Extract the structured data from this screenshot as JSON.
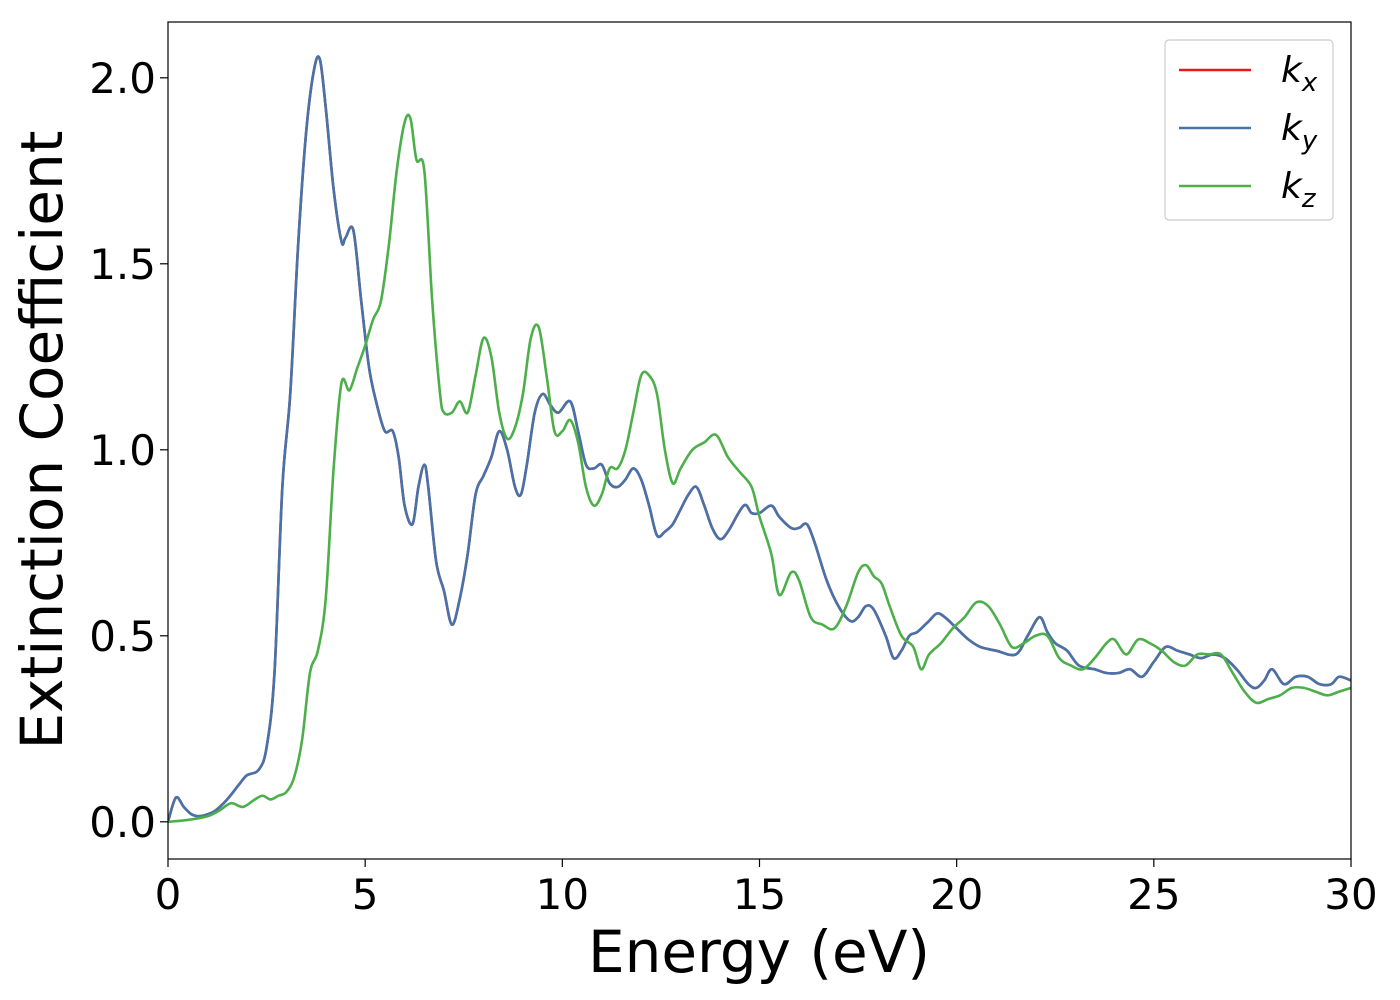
{
  "chart_data": {
    "type": "line",
    "xlabel": "Energy (eV)",
    "ylabel": "Extinction Coefficient",
    "xlim": [
      0,
      30
    ],
    "ylim": [
      -0.1,
      2.15
    ],
    "xticks": [
      0,
      5,
      10,
      15,
      20,
      25,
      30
    ],
    "yticks": [
      0.0,
      0.5,
      1.0,
      1.5,
      2.0
    ],
    "xtick_labels": [
      "0",
      "5",
      "10",
      "15",
      "20",
      "25",
      "30"
    ],
    "ytick_labels": [
      "0.0",
      "0.5",
      "1.0",
      "1.5",
      "2.0"
    ],
    "grid": false,
    "legend_position": "top-right",
    "series": [
      {
        "name": "k_x",
        "legend_base": "k",
        "legend_sub": "x",
        "color": "#e41a1c",
        "x": [
          0,
          0.2,
          0.4,
          0.6,
          0.8,
          1.0,
          1.2,
          1.5,
          1.8,
          2.0,
          2.3,
          2.5,
          2.7,
          2.9,
          3.1,
          3.3,
          3.5,
          3.7,
          3.85,
          4.0,
          4.2,
          4.4,
          4.5,
          4.7,
          4.9,
          5.1,
          5.3,
          5.5,
          5.7,
          5.85,
          6.0,
          6.2,
          6.35,
          6.5,
          6.6,
          6.8,
          7.0,
          7.2,
          7.4,
          7.6,
          7.8,
          8.0,
          8.2,
          8.4,
          8.6,
          8.8,
          8.95,
          9.1,
          9.3,
          9.5,
          9.7,
          9.9,
          10.2,
          10.4,
          10.6,
          10.8,
          11.0,
          11.2,
          11.4,
          11.6,
          11.8,
          12.0,
          12.2,
          12.4,
          12.6,
          12.8,
          13.0,
          13.2,
          13.4,
          13.6,
          13.8,
          14.0,
          14.2,
          14.6,
          14.8,
          15.0,
          15.3,
          15.5,
          15.8,
          16.0,
          16.2,
          16.4,
          16.7,
          17.0,
          17.3,
          17.5,
          17.7,
          17.9,
          18.2,
          18.4,
          18.6,
          18.8,
          19.0,
          19.3,
          19.5,
          19.7,
          20.0,
          20.3,
          20.6,
          21.0,
          21.5,
          21.8,
          22.1,
          22.3,
          22.5,
          22.8,
          23.1,
          23.5,
          23.8,
          24.1,
          24.4,
          24.7,
          25.0,
          25.3,
          25.6,
          25.9,
          26.2,
          26.5,
          26.8,
          27.1,
          27.4,
          27.6,
          27.8,
          28.0,
          28.3,
          28.6,
          28.9,
          29.2,
          29.5,
          29.7,
          30.0
        ],
        "y": [
          0.0,
          0.065,
          0.04,
          0.02,
          0.015,
          0.02,
          0.03,
          0.06,
          0.1,
          0.125,
          0.14,
          0.2,
          0.4,
          0.9,
          1.15,
          1.55,
          1.85,
          2.02,
          2.05,
          1.92,
          1.7,
          1.56,
          1.57,
          1.59,
          1.4,
          1.22,
          1.12,
          1.05,
          1.05,
          0.98,
          0.85,
          0.8,
          0.9,
          0.96,
          0.9,
          0.7,
          0.62,
          0.53,
          0.6,
          0.72,
          0.88,
          0.93,
          0.98,
          1.05,
          1.0,
          0.9,
          0.88,
          0.96,
          1.1,
          1.15,
          1.12,
          1.1,
          1.13,
          1.05,
          0.96,
          0.95,
          0.96,
          0.91,
          0.9,
          0.92,
          0.95,
          0.92,
          0.85,
          0.77,
          0.78,
          0.8,
          0.84,
          0.88,
          0.9,
          0.85,
          0.79,
          0.76,
          0.78,
          0.85,
          0.83,
          0.83,
          0.85,
          0.82,
          0.79,
          0.79,
          0.8,
          0.75,
          0.65,
          0.58,
          0.54,
          0.55,
          0.58,
          0.57,
          0.5,
          0.44,
          0.46,
          0.5,
          0.51,
          0.54,
          0.56,
          0.55,
          0.52,
          0.49,
          0.47,
          0.46,
          0.45,
          0.5,
          0.55,
          0.51,
          0.48,
          0.46,
          0.42,
          0.41,
          0.4,
          0.4,
          0.41,
          0.39,
          0.43,
          0.47,
          0.46,
          0.45,
          0.44,
          0.45,
          0.44,
          0.41,
          0.37,
          0.36,
          0.38,
          0.41,
          0.37,
          0.39,
          0.39,
          0.37,
          0.37,
          0.39,
          0.38
        ]
      },
      {
        "name": "k_y",
        "legend_base": "k",
        "legend_sub": "y",
        "color": "#4573aa",
        "x": [
          0,
          0.2,
          0.4,
          0.6,
          0.8,
          1.0,
          1.2,
          1.5,
          1.8,
          2.0,
          2.3,
          2.5,
          2.7,
          2.9,
          3.1,
          3.3,
          3.5,
          3.7,
          3.85,
          4.0,
          4.2,
          4.4,
          4.5,
          4.7,
          4.9,
          5.1,
          5.3,
          5.5,
          5.7,
          5.85,
          6.0,
          6.2,
          6.35,
          6.5,
          6.6,
          6.8,
          7.0,
          7.2,
          7.4,
          7.6,
          7.8,
          8.0,
          8.2,
          8.4,
          8.6,
          8.8,
          8.95,
          9.1,
          9.3,
          9.5,
          9.7,
          9.9,
          10.2,
          10.4,
          10.6,
          10.8,
          11.0,
          11.2,
          11.4,
          11.6,
          11.8,
          12.0,
          12.2,
          12.4,
          12.6,
          12.8,
          13.0,
          13.2,
          13.4,
          13.6,
          13.8,
          14.0,
          14.2,
          14.6,
          14.8,
          15.0,
          15.3,
          15.5,
          15.8,
          16.0,
          16.2,
          16.4,
          16.7,
          17.0,
          17.3,
          17.5,
          17.7,
          17.9,
          18.2,
          18.4,
          18.6,
          18.8,
          19.0,
          19.3,
          19.5,
          19.7,
          20.0,
          20.3,
          20.6,
          21.0,
          21.5,
          21.8,
          22.1,
          22.3,
          22.5,
          22.8,
          23.1,
          23.5,
          23.8,
          24.1,
          24.4,
          24.7,
          25.0,
          25.3,
          25.6,
          25.9,
          26.2,
          26.5,
          26.8,
          27.1,
          27.4,
          27.6,
          27.8,
          28.0,
          28.3,
          28.6,
          28.9,
          29.2,
          29.5,
          29.7,
          30.0
        ],
        "y": [
          0.0,
          0.065,
          0.04,
          0.02,
          0.015,
          0.02,
          0.03,
          0.06,
          0.1,
          0.125,
          0.14,
          0.2,
          0.4,
          0.9,
          1.15,
          1.55,
          1.85,
          2.02,
          2.05,
          1.92,
          1.7,
          1.56,
          1.57,
          1.59,
          1.4,
          1.22,
          1.12,
          1.05,
          1.05,
          0.98,
          0.85,
          0.8,
          0.9,
          0.96,
          0.9,
          0.7,
          0.62,
          0.53,
          0.6,
          0.72,
          0.88,
          0.93,
          0.98,
          1.05,
          1.0,
          0.9,
          0.88,
          0.96,
          1.1,
          1.15,
          1.12,
          1.1,
          1.13,
          1.05,
          0.96,
          0.95,
          0.96,
          0.91,
          0.9,
          0.92,
          0.95,
          0.92,
          0.85,
          0.77,
          0.78,
          0.8,
          0.84,
          0.88,
          0.9,
          0.85,
          0.79,
          0.76,
          0.78,
          0.85,
          0.83,
          0.83,
          0.85,
          0.82,
          0.79,
          0.79,
          0.8,
          0.75,
          0.65,
          0.58,
          0.54,
          0.55,
          0.58,
          0.57,
          0.5,
          0.44,
          0.46,
          0.5,
          0.51,
          0.54,
          0.56,
          0.55,
          0.52,
          0.49,
          0.47,
          0.46,
          0.45,
          0.5,
          0.55,
          0.51,
          0.48,
          0.46,
          0.42,
          0.41,
          0.4,
          0.4,
          0.41,
          0.39,
          0.43,
          0.47,
          0.46,
          0.45,
          0.44,
          0.45,
          0.44,
          0.41,
          0.37,
          0.36,
          0.38,
          0.41,
          0.37,
          0.39,
          0.39,
          0.37,
          0.37,
          0.39,
          0.38
        ]
      },
      {
        "name": "k_z",
        "legend_base": "k",
        "legend_sub": "z",
        "color": "#4daf4a",
        "x": [
          0,
          0.5,
          1.0,
          1.3,
          1.6,
          1.9,
          2.2,
          2.4,
          2.6,
          2.8,
          3.0,
          3.2,
          3.4,
          3.6,
          3.8,
          4.0,
          4.2,
          4.4,
          4.6,
          4.8,
          5.0,
          5.2,
          5.4,
          5.6,
          5.8,
          6.0,
          6.15,
          6.3,
          6.5,
          6.7,
          6.9,
          7.0,
          7.2,
          7.4,
          7.6,
          7.8,
          8.0,
          8.2,
          8.4,
          8.6,
          8.8,
          9.0,
          9.2,
          9.4,
          9.6,
          9.8,
          10.0,
          10.2,
          10.4,
          10.6,
          10.8,
          11.0,
          11.2,
          11.4,
          11.6,
          11.8,
          12.0,
          12.2,
          12.4,
          12.6,
          12.8,
          13.0,
          13.3,
          13.6,
          13.9,
          14.2,
          14.5,
          14.8,
          15.0,
          15.3,
          15.5,
          15.8,
          16.0,
          16.3,
          16.6,
          16.9,
          17.2,
          17.5,
          17.7,
          17.9,
          18.1,
          18.3,
          18.6,
          18.9,
          19.1,
          19.3,
          19.6,
          19.9,
          20.2,
          20.5,
          20.8,
          21.1,
          21.4,
          21.7,
          22.0,
          22.3,
          22.6,
          22.9,
          23.2,
          23.5,
          23.8,
          24.0,
          24.3,
          24.6,
          24.9,
          25.2,
          25.5,
          25.8,
          26.1,
          26.4,
          26.7,
          27.0,
          27.3,
          27.6,
          27.9,
          28.2,
          28.5,
          28.8,
          29.1,
          29.4,
          29.7,
          30.0
        ],
        "y": [
          0.0,
          0.005,
          0.015,
          0.03,
          0.05,
          0.04,
          0.06,
          0.07,
          0.06,
          0.07,
          0.08,
          0.12,
          0.22,
          0.4,
          0.46,
          0.6,
          0.95,
          1.18,
          1.16,
          1.22,
          1.28,
          1.35,
          1.4,
          1.55,
          1.75,
          1.88,
          1.89,
          1.78,
          1.75,
          1.4,
          1.15,
          1.1,
          1.1,
          1.13,
          1.1,
          1.2,
          1.3,
          1.25,
          1.1,
          1.03,
          1.06,
          1.15,
          1.3,
          1.33,
          1.2,
          1.05,
          1.05,
          1.08,
          1.02,
          0.9,
          0.85,
          0.88,
          0.95,
          0.95,
          1.0,
          1.1,
          1.2,
          1.2,
          1.15,
          1.0,
          0.91,
          0.95,
          1.0,
          1.02,
          1.04,
          0.98,
          0.94,
          0.9,
          0.82,
          0.72,
          0.61,
          0.67,
          0.65,
          0.55,
          0.53,
          0.52,
          0.58,
          0.67,
          0.69,
          0.66,
          0.64,
          0.58,
          0.5,
          0.47,
          0.41,
          0.45,
          0.48,
          0.52,
          0.55,
          0.59,
          0.58,
          0.53,
          0.47,
          0.48,
          0.5,
          0.5,
          0.44,
          0.42,
          0.41,
          0.44,
          0.48,
          0.49,
          0.45,
          0.49,
          0.48,
          0.46,
          0.43,
          0.42,
          0.45,
          0.45,
          0.45,
          0.4,
          0.35,
          0.32,
          0.33,
          0.34,
          0.36,
          0.36,
          0.35,
          0.34,
          0.35,
          0.36
        ]
      }
    ]
  }
}
